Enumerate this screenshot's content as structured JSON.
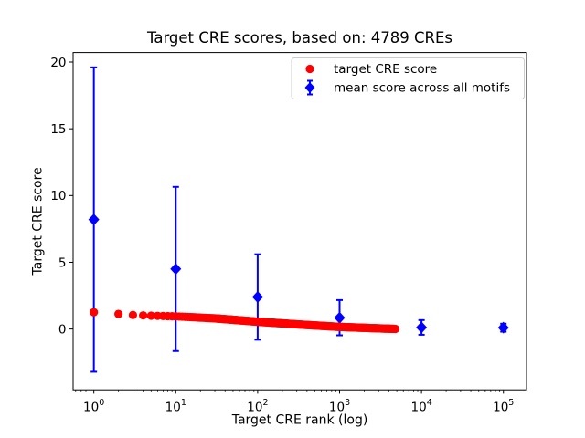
{
  "window": {
    "background": "#ffffff"
  },
  "chart_data": {
    "type": "scatter",
    "title": "Target CRE scores, based on: 4789 CREs",
    "xlabel": "Target CRE rank (log)",
    "ylabel": "Target CRE score",
    "xscale": "log",
    "grid": false,
    "legend_position": "upper right",
    "xlim_log10": [
      -0.253,
      5.282
    ],
    "ylim": [
      -4.55,
      20.71
    ],
    "yticks": [
      {
        "value": 0,
        "label": "0"
      },
      {
        "value": 5,
        "label": "5"
      },
      {
        "value": 10,
        "label": "10"
      },
      {
        "value": 15,
        "label": "15"
      },
      {
        "value": 20,
        "label": "20"
      }
    ],
    "xticks": [
      {
        "base": "10",
        "exponent": "0"
      },
      {
        "base": "10",
        "exponent": "1"
      },
      {
        "base": "10",
        "exponent": "2"
      },
      {
        "base": "10",
        "exponent": "3"
      },
      {
        "base": "10",
        "exponent": "4"
      },
      {
        "base": "10",
        "exponent": "5"
      }
    ],
    "series": {
      "target": {
        "name": "target CRE score",
        "color": "#ff0000",
        "marker": "circle",
        "n_points": 4789,
        "rank_range": [
          1,
          4789
        ],
        "profile_log10rank_vs_score": [
          [
            0.0,
            1.26
          ],
          [
            0.3,
            1.13
          ],
          [
            0.48,
            1.05
          ],
          [
            0.7,
            1.0
          ],
          [
            1.0,
            0.95
          ],
          [
            1.48,
            0.8
          ],
          [
            2.0,
            0.55
          ],
          [
            2.48,
            0.35
          ],
          [
            3.0,
            0.16
          ],
          [
            3.48,
            0.05
          ],
          [
            3.68,
            0.01
          ]
        ]
      },
      "mean": {
        "name": "mean score across all motifs",
        "color": "#0000ff",
        "marker": "diamond",
        "x": [
          1,
          10,
          100,
          1000,
          10000,
          100000
        ],
        "y": [
          8.2,
          4.5,
          2.4,
          0.85,
          0.12,
          0.1
        ],
        "yerr": [
          11.4,
          6.15,
          3.2,
          1.32,
          0.55,
          0.3
        ]
      }
    },
    "axis_color": "#000000"
  }
}
